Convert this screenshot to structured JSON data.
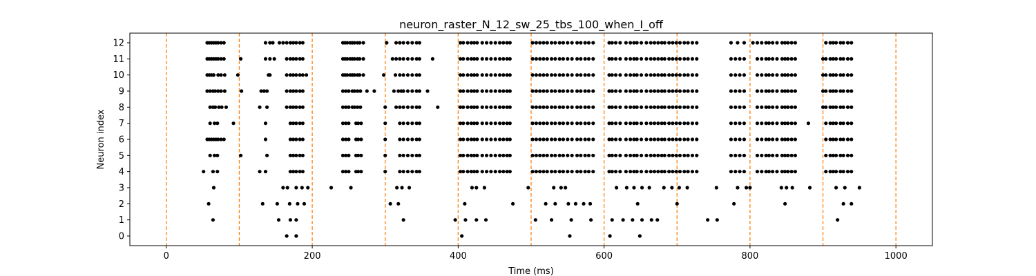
{
  "chart_data": {
    "type": "scatter",
    "title": "neuron_raster_N_12_sw_25_tbs_100_when_I_off",
    "xlabel": "Time (ms)",
    "ylabel": "Neuron index",
    "xlim": [
      -50,
      1050
    ],
    "ylim": [
      -0.6,
      12.6
    ],
    "xticks": [
      0,
      200,
      400,
      600,
      800,
      1000
    ],
    "yticks": [
      0,
      1,
      2,
      3,
      4,
      5,
      6,
      7,
      8,
      9,
      10,
      11,
      12
    ],
    "grid": false,
    "marker_color": "#000000",
    "vline_color": "#ff7f0e",
    "vlines": [
      0,
      100,
      200,
      300,
      400,
      500,
      600,
      700,
      800,
      900,
      1000
    ],
    "spikes": [
      {
        "neuron": 12,
        "times": [
          56,
          59,
          62,
          65,
          68,
          71,
          75,
          79,
          136,
          142,
          146,
          155,
          160,
          165,
          170,
          174,
          178,
          183,
          187,
          242,
          245,
          248,
          252,
          255,
          258,
          262,
          265,
          270,
          302,
          315,
          320,
          325,
          331,
          337,
          343,
          347,
          403,
          407,
          413,
          418,
          422,
          426,
          433,
          439,
          445,
          451,
          457,
          462,
          467,
          471,
          502,
          507,
          512,
          517,
          522,
          528,
          533,
          539,
          544,
          550,
          556,
          563,
          568,
          574,
          579,
          585,
          607,
          611,
          616,
          622,
          630,
          636,
          641,
          645,
          651,
          658,
          664,
          669,
          674,
          679,
          683,
          689,
          694,
          699,
          704,
          710,
          715,
          721,
          727,
          774,
          783,
          792,
          804,
          810,
          816,
          822,
          826,
          831,
          837,
          844,
          848,
          852,
          857,
          862,
          904,
          910,
          914,
          918,
          924,
          928,
          934,
          939
        ]
      },
      {
        "neuron": 11,
        "times": [
          56,
          59,
          62,
          65,
          68,
          71,
          75,
          79,
          102,
          136,
          142,
          148,
          165,
          170,
          174,
          178,
          183,
          187,
          242,
          245,
          248,
          252,
          255,
          258,
          262,
          265,
          270,
          310,
          315,
          320,
          325,
          331,
          337,
          343,
          347,
          365,
          403,
          407,
          413,
          418,
          422,
          426,
          433,
          439,
          445,
          451,
          457,
          462,
          467,
          471,
          502,
          507,
          512,
          517,
          522,
          528,
          533,
          539,
          544,
          550,
          556,
          563,
          568,
          574,
          579,
          585,
          607,
          611,
          616,
          622,
          630,
          636,
          641,
          645,
          651,
          658,
          664,
          669,
          674,
          679,
          683,
          689,
          694,
          699,
          704,
          710,
          715,
          721,
          727,
          774,
          780,
          786,
          792,
          810,
          816,
          822,
          826,
          831,
          837,
          844,
          848,
          852,
          857,
          862,
          900,
          904,
          910,
          914,
          918,
          924,
          928,
          934,
          939
        ]
      },
      {
        "neuron": 10,
        "times": [
          56,
          59,
          62,
          65,
          71,
          75,
          80,
          98,
          140,
          142,
          165,
          170,
          174,
          178,
          183,
          187,
          192,
          242,
          245,
          248,
          252,
          255,
          258,
          262,
          265,
          270,
          298,
          314,
          320,
          325,
          331,
          337,
          343,
          347,
          403,
          407,
          413,
          418,
          422,
          426,
          433,
          439,
          445,
          451,
          457,
          462,
          467,
          471,
          502,
          507,
          512,
          517,
          522,
          528,
          533,
          539,
          544,
          550,
          556,
          563,
          568,
          574,
          579,
          585,
          607,
          611,
          616,
          622,
          630,
          636,
          641,
          645,
          651,
          658,
          664,
          669,
          674,
          679,
          683,
          689,
          694,
          699,
          704,
          710,
          715,
          721,
          727,
          774,
          780,
          786,
          792,
          810,
          816,
          822,
          826,
          831,
          837,
          844,
          848,
          852,
          857,
          862,
          900,
          904,
          910,
          914,
          918,
          924,
          928,
          934,
          939
        ]
      },
      {
        "neuron": 9,
        "times": [
          56,
          60,
          64,
          67,
          71,
          75,
          80,
          103,
          130,
          134,
          138,
          165,
          170,
          174,
          178,
          183,
          187,
          242,
          246,
          250,
          255,
          258,
          262,
          266,
          275,
          285,
          312,
          318,
          322,
          325,
          331,
          337,
          343,
          347,
          358,
          403,
          407,
          413,
          418,
          422,
          426,
          433,
          439,
          445,
          451,
          457,
          462,
          467,
          471,
          502,
          507,
          512,
          517,
          522,
          528,
          533,
          539,
          544,
          550,
          556,
          563,
          568,
          574,
          579,
          585,
          607,
          611,
          616,
          622,
          630,
          636,
          641,
          645,
          651,
          658,
          664,
          669,
          674,
          679,
          683,
          689,
          694,
          699,
          704,
          710,
          715,
          721,
          727,
          774,
          780,
          786,
          792,
          810,
          816,
          822,
          826,
          831,
          837,
          844,
          848,
          852,
          857,
          862,
          900,
          904,
          910,
          914,
          918,
          924,
          928,
          934,
          939
        ]
      },
      {
        "neuron": 8,
        "times": [
          60,
          64,
          67,
          72,
          76,
          82,
          128,
          138,
          165,
          170,
          174,
          178,
          183,
          187,
          242,
          246,
          250,
          255,
          258,
          262,
          266,
          300,
          315,
          320,
          325,
          331,
          337,
          343,
          347,
          372,
          403,
          407,
          413,
          418,
          422,
          426,
          433,
          439,
          445,
          451,
          457,
          462,
          467,
          471,
          502,
          507,
          512,
          517,
          522,
          528,
          533,
          539,
          544,
          550,
          556,
          563,
          568,
          574,
          579,
          585,
          607,
          611,
          616,
          622,
          630,
          636,
          641,
          645,
          651,
          658,
          664,
          669,
          674,
          679,
          683,
          689,
          694,
          699,
          704,
          710,
          715,
          721,
          727,
          774,
          780,
          786,
          792,
          810,
          816,
          822,
          826,
          831,
          837,
          844,
          848,
          852,
          857,
          862,
          900,
          904,
          910,
          914,
          918,
          924,
          928,
          934,
          939
        ]
      },
      {
        "neuron": 7,
        "times": [
          60,
          66,
          70,
          92,
          136,
          170,
          174,
          178,
          183,
          187,
          242,
          246,
          250,
          260,
          263,
          267,
          300,
          320,
          325,
          331,
          337,
          343,
          347,
          403,
          407,
          413,
          418,
          422,
          426,
          433,
          439,
          445,
          451,
          457,
          462,
          467,
          471,
          502,
          507,
          512,
          517,
          522,
          528,
          533,
          539,
          544,
          550,
          556,
          563,
          568,
          574,
          579,
          585,
          607,
          611,
          616,
          622,
          630,
          636,
          641,
          645,
          651,
          658,
          664,
          669,
          674,
          679,
          683,
          689,
          694,
          699,
          704,
          710,
          715,
          721,
          727,
          774,
          780,
          786,
          792,
          810,
          816,
          822,
          826,
          831,
          837,
          844,
          848,
          852,
          857,
          862,
          880,
          904,
          910,
          914,
          918,
          924,
          928,
          934,
          939
        ]
      },
      {
        "neuron": 6,
        "times": [
          56,
          59,
          62,
          65,
          68,
          71,
          75,
          79,
          136,
          170,
          174,
          178,
          183,
          187,
          242,
          246,
          250,
          260,
          263,
          267,
          300,
          320,
          325,
          331,
          337,
          343,
          347,
          403,
          407,
          413,
          418,
          422,
          426,
          433,
          439,
          445,
          451,
          457,
          462,
          467,
          471,
          502,
          507,
          512,
          517,
          522,
          528,
          533,
          539,
          544,
          550,
          556,
          563,
          568,
          574,
          579,
          585,
          607,
          611,
          616,
          622,
          630,
          636,
          641,
          645,
          651,
          658,
          664,
          669,
          674,
          679,
          683,
          689,
          694,
          699,
          704,
          710,
          715,
          721,
          727,
          774,
          780,
          786,
          792,
          810,
          816,
          822,
          826,
          831,
          837,
          844,
          848,
          852,
          857,
          862,
          904,
          910,
          914,
          918,
          924,
          928,
          934,
          939
        ]
      },
      {
        "neuron": 5,
        "times": [
          60,
          66,
          70,
          102,
          138,
          170,
          174,
          178,
          183,
          187,
          242,
          246,
          250,
          260,
          263,
          267,
          300,
          320,
          325,
          331,
          337,
          343,
          347,
          403,
          407,
          413,
          418,
          422,
          426,
          433,
          439,
          445,
          451,
          457,
          462,
          467,
          471,
          502,
          507,
          512,
          517,
          522,
          528,
          533,
          539,
          544,
          550,
          556,
          563,
          568,
          574,
          579,
          585,
          607,
          611,
          616,
          622,
          630,
          636,
          641,
          645,
          651,
          658,
          664,
          669,
          674,
          679,
          683,
          689,
          694,
          699,
          704,
          710,
          715,
          721,
          727,
          774,
          780,
          786,
          792,
          810,
          816,
          822,
          826,
          831,
          837,
          844,
          848,
          852,
          857,
          862,
          904,
          910,
          914,
          918,
          924,
          928,
          934,
          939
        ]
      },
      {
        "neuron": 4,
        "times": [
          51,
          64,
          70,
          128,
          136,
          170,
          174,
          178,
          183,
          187,
          242,
          246,
          250,
          260,
          263,
          267,
          300,
          320,
          325,
          331,
          337,
          343,
          347,
          403,
          407,
          413,
          418,
          422,
          426,
          433,
          439,
          445,
          451,
          457,
          462,
          467,
          471,
          502,
          507,
          512,
          517,
          522,
          528,
          533,
          539,
          544,
          550,
          556,
          563,
          568,
          574,
          579,
          585,
          607,
          611,
          616,
          622,
          630,
          636,
          641,
          645,
          651,
          658,
          664,
          669,
          674,
          679,
          683,
          689,
          694,
          699,
          704,
          710,
          715,
          721,
          727,
          774,
          780,
          786,
          792,
          810,
          816,
          822,
          826,
          831,
          837,
          844,
          848,
          852,
          857,
          862,
          904,
          910,
          914,
          918,
          924,
          928,
          934,
          939
        ]
      },
      {
        "neuron": 3,
        "times": [
          65,
          160,
          166,
          178,
          186,
          194,
          226,
          253,
          316,
          323,
          333,
          419,
          425,
          436,
          496,
          531,
          541,
          547,
          617,
          631,
          641,
          652,
          662,
          682,
          693,
          703,
          714,
          754,
          783,
          795,
          800,
          843,
          850,
          858,
          882,
          918,
          930,
          950
        ]
      },
      {
        "neuron": 2,
        "times": [
          58,
          132,
          152,
          169,
          180,
          189,
          307,
          318,
          409,
          475,
          520,
          533,
          551,
          561,
          572,
          581,
          646,
          700,
          778,
          848,
          928,
          939
        ]
      },
      {
        "neuron": 1,
        "times": [
          64,
          154,
          170,
          178,
          325,
          396,
          410,
          425,
          438,
          506,
          528,
          555,
          582,
          611,
          626,
          639,
          652,
          665,
          673,
          742,
          755,
          920
        ]
      },
      {
        "neuron": 0,
        "times": [
          165,
          178,
          405,
          553,
          608,
          649
        ]
      }
    ]
  }
}
